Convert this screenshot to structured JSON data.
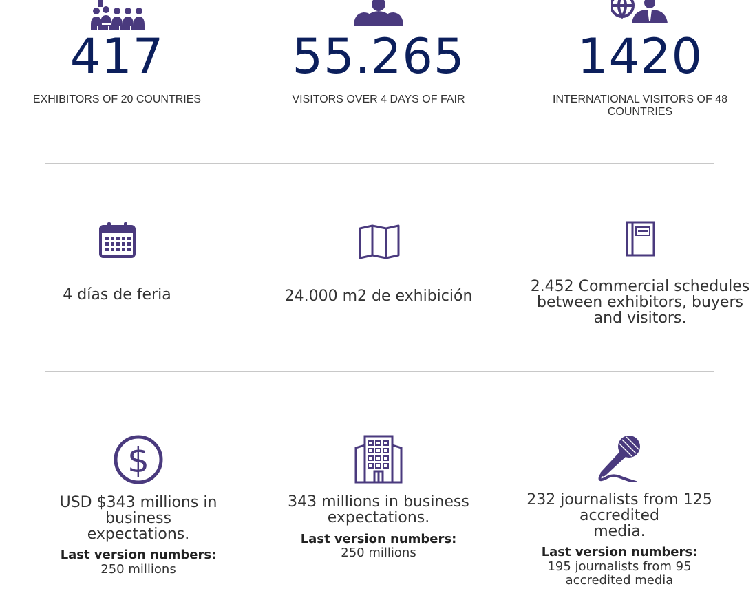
{
  "stats": [
    {
      "number": "417",
      "caption": "EXHIBITORS OF 20 COUNTRIES",
      "icon": "group-icon"
    },
    {
      "number": "55.265",
      "caption": "VISITORS OVER 4 DAYS OF FAIR",
      "icon": "people-icon"
    },
    {
      "number": "1420",
      "caption_line1": "INTERNATIONAL VISITORS OF 48",
      "caption_line2": "COUNTRIES",
      "icon": "globe-person-icon"
    }
  ],
  "features": [
    {
      "text": "4 días de feria",
      "icon": "calendar-icon"
    },
    {
      "text": "24.000 m2 de exhibición",
      "icon": "map-icon"
    },
    {
      "line1": "2.452 Commercial schedules",
      "line2": "between exhibitors, buyers",
      "line3": "and visitors.",
      "icon": "notebook-icon"
    }
  ],
  "results": [
    {
      "line1": "USD $343 millions in",
      "line2": "business",
      "line3": "expectations.",
      "last_label": "Last version numbers:",
      "last_line1": "250 millions",
      "icon": "dollar-icon"
    },
    {
      "line1": "343 millions in business",
      "line2": "expectations.",
      "last_label": "Last version numbers:",
      "last_line1": "250 millions",
      "icon": "building-icon"
    },
    {
      "line1": "232 journalists from 125",
      "line2": "accredited",
      "line3": "media.",
      "last_label": "Last version numbers:",
      "last_line1": "195 journalists from 95",
      "last_line2": "accredited media",
      "icon": "microphone-icon"
    }
  ],
  "colors": {
    "accent": "#4a3a7e",
    "number": "#0c1f5c",
    "divider": "#c8c8c8"
  }
}
